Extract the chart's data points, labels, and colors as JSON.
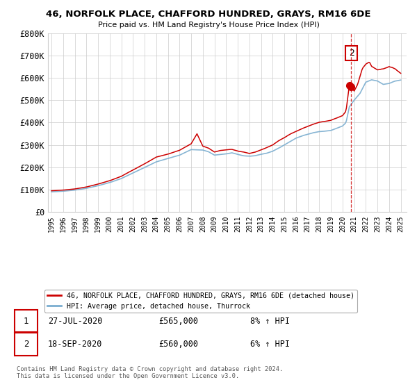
{
  "title_line1": "46, NORFOLK PLACE, CHAFFORD HUNDRED, GRAYS, RM16 6DE",
  "title_line2": "Price paid vs. HM Land Registry's House Price Index (HPI)",
  "ylim": [
    0,
    800000
  ],
  "yticks": [
    0,
    100000,
    200000,
    300000,
    400000,
    500000,
    600000,
    700000,
    800000
  ],
  "ytick_labels": [
    "£0",
    "£100K",
    "£200K",
    "£300K",
    "£400K",
    "£500K",
    "£600K",
    "£700K",
    "£800K"
  ],
  "legend_label_red": "46, NORFOLK PLACE, CHAFFORD HUNDRED, GRAYS, RM16 6DE (detached house)",
  "legend_label_blue": "HPI: Average price, detached house, Thurrock",
  "annotation1_date": "27-JUL-2020",
  "annotation1_price": "£565,000",
  "annotation1_hpi": "8% ↑ HPI",
  "annotation2_date": "18-SEP-2020",
  "annotation2_price": "£560,000",
  "annotation2_hpi": "6% ↑ HPI",
  "footer": "Contains HM Land Registry data © Crown copyright and database right 2024.\nThis data is licensed under the Open Government Licence v3.0.",
  "color_red": "#cc0000",
  "color_blue": "#7aadcf",
  "bg_color": "#ffffff",
  "grid_color": "#cccccc"
}
